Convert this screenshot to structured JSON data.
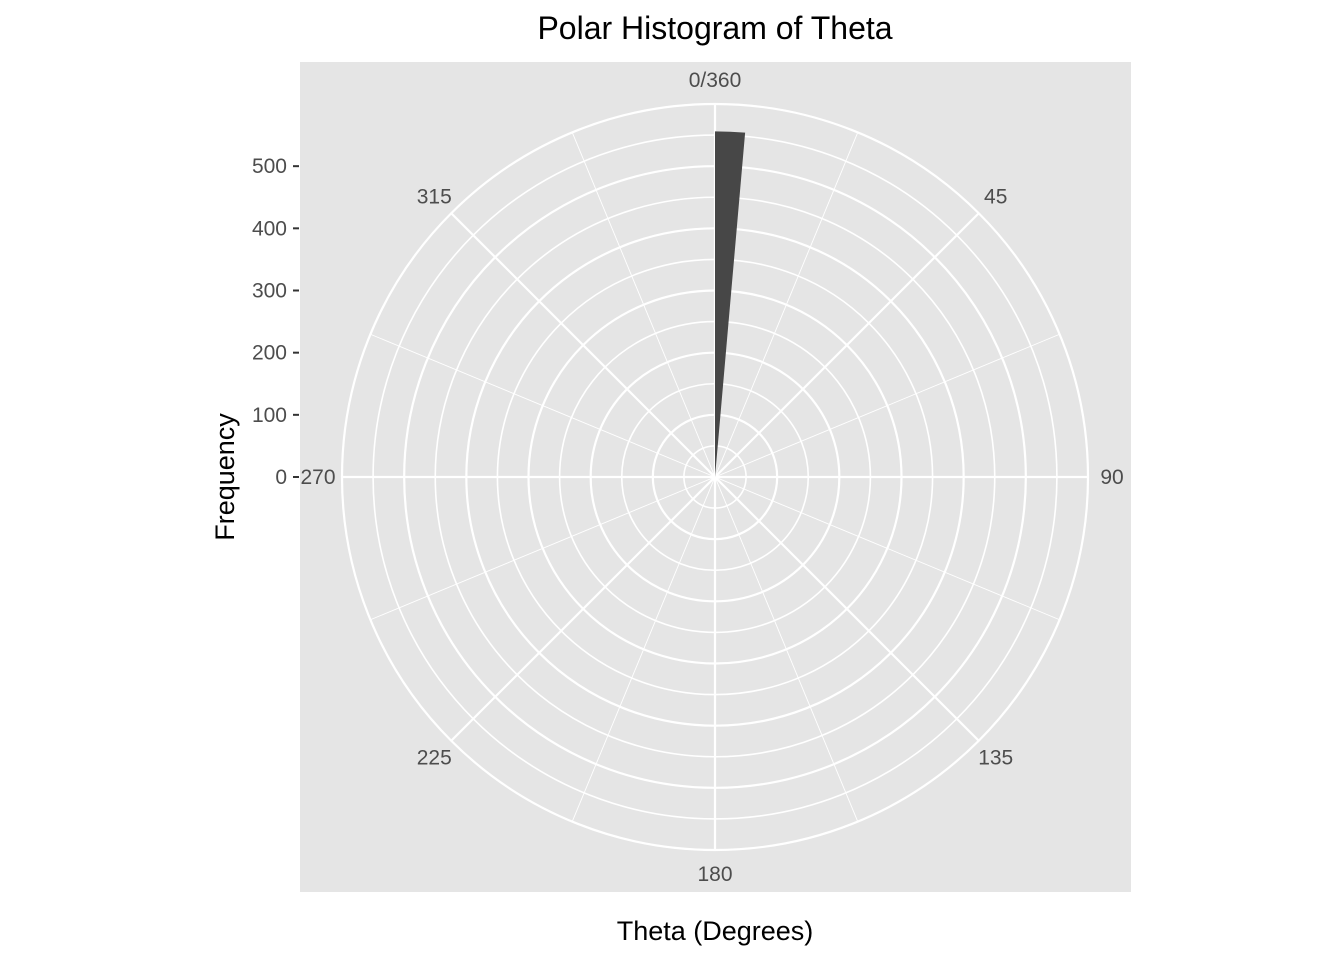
{
  "chart_data": {
    "type": "bar",
    "coordinate_system": "polar",
    "title": "Polar Histogram of Theta",
    "xlabel": "Theta (Degrees)",
    "ylabel": "Frequency",
    "theta_breaks": [
      0,
      45,
      90,
      135,
      180,
      225,
      270,
      315
    ],
    "theta_labels": [
      "0/360",
      "45",
      "90",
      "135",
      "180",
      "225",
      "270",
      "315"
    ],
    "theta_range": [
      0,
      360
    ],
    "r_breaks": [
      0,
      100,
      200,
      300,
      400,
      500
    ],
    "r_labels": [
      "0",
      "100",
      "200",
      "300",
      "400",
      "500"
    ],
    "r_range": [
      0,
      600
    ],
    "bins": [
      {
        "start": 0,
        "end": 5,
        "count": 556
      }
    ],
    "colors": {
      "panel_background": "#e5e5e5",
      "grid": "#ffffff",
      "bar_fill": "#474747"
    },
    "grid": true,
    "legend": "none"
  }
}
